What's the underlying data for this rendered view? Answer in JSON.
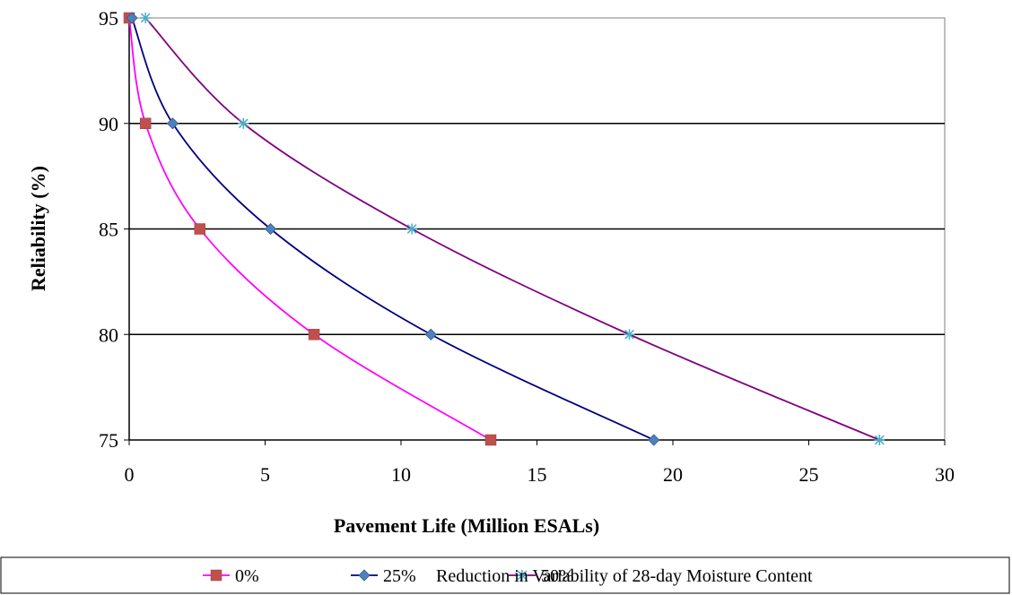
{
  "chart_data": {
    "type": "line",
    "xlabel": "Pavement Life (Million  ESALs)",
    "ylabel": "Reliability  (%)",
    "xlim": [
      0,
      30
    ],
    "ylim": [
      75,
      95
    ],
    "xticks": [
      "0",
      "5",
      "10",
      "15",
      "20",
      "25",
      "30"
    ],
    "yticks": [
      "75",
      "80",
      "85",
      "90",
      "95"
    ],
    "grid": "horizontal",
    "legend_position": "bottom",
    "series": [
      {
        "name": "0%",
        "line_color": "#ff00ff",
        "marker": "square",
        "marker_color": "#c0504d",
        "points": [
          [
            0,
            95
          ],
          [
            0.6,
            90
          ],
          [
            2.6,
            85
          ],
          [
            6.8,
            80
          ],
          [
            13.3,
            75
          ]
        ]
      },
      {
        "name": "25%",
        "line_color": "#000080",
        "marker": "diamond",
        "marker_color": "#4f81bd",
        "points": [
          [
            0.1,
            95
          ],
          [
            1.6,
            90
          ],
          [
            5.2,
            85
          ],
          [
            11.1,
            80
          ],
          [
            19.3,
            75
          ]
        ]
      },
      {
        "name": "50%",
        "line_color": "#800080",
        "marker": "star",
        "marker_color": "#4bacc6",
        "points": [
          [
            0.6,
            95
          ],
          [
            4.2,
            90
          ],
          [
            10.4,
            85
          ],
          [
            18.4,
            80
          ],
          [
            27.6,
            75
          ]
        ]
      }
    ],
    "legend_note": "Reduction in Variability of 28-day Moisture Content"
  }
}
